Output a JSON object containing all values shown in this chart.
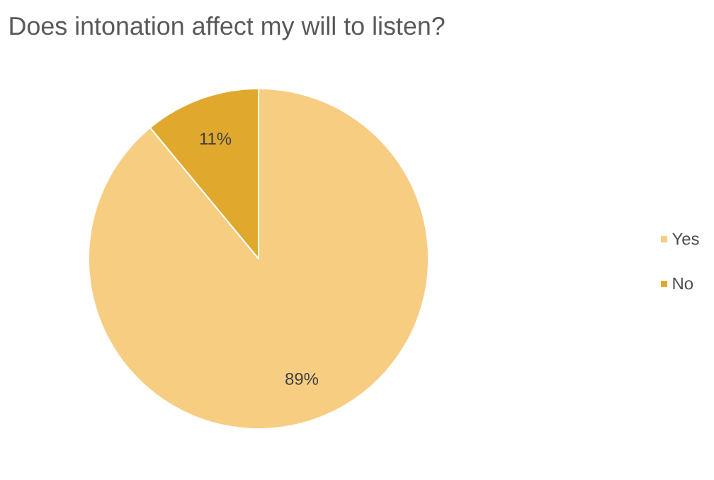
{
  "chart_data": {
    "type": "pie",
    "title": "Does intonation affect my will to listen?",
    "categories": [
      "Yes",
      "No"
    ],
    "values": [
      89,
      11
    ],
    "colors": [
      "#f7cd82",
      "#e0a92e"
    ],
    "value_labels": [
      "89%",
      "11%"
    ],
    "legend": "right"
  }
}
